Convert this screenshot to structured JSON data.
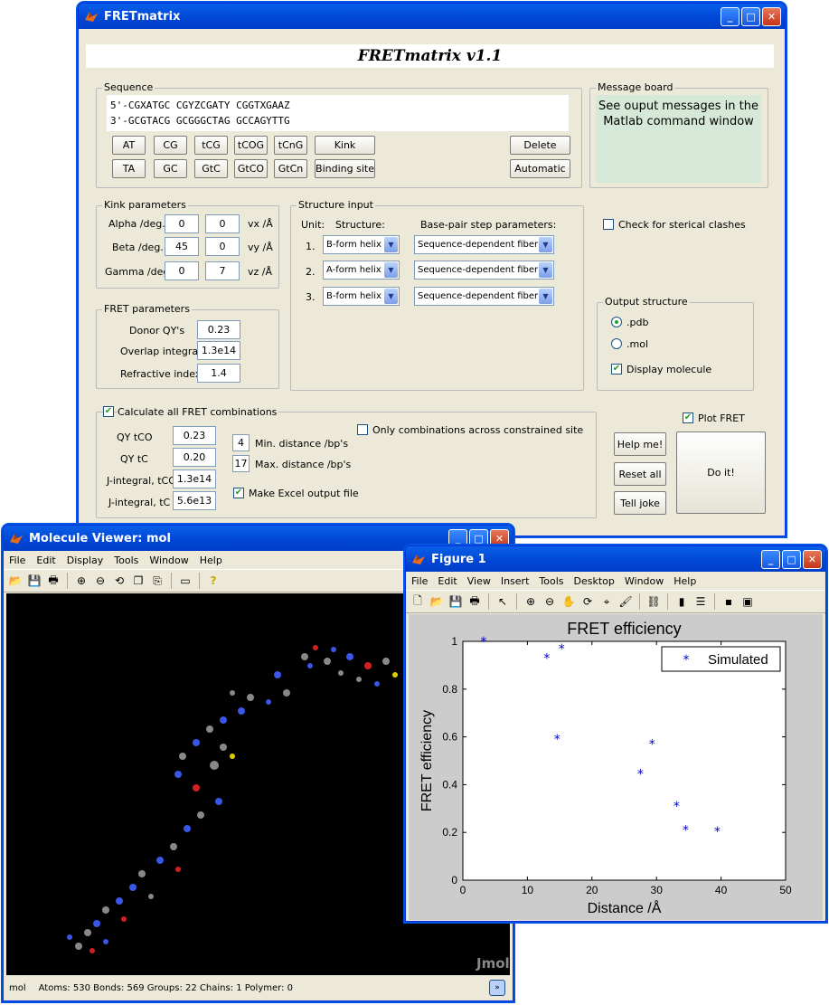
{
  "main_window": {
    "title": "FRETmatrix",
    "banner": "FRETmatrix v1.1",
    "sequence": {
      "label": "Sequence",
      "line1": "5'-CGXATGC CGYZCGATY CGGTXGAAZ",
      "line2": "3'-GCGTACG GCGGGCTAG GCCAGYTTG",
      "buttons_row1": [
        "AT",
        "CG",
        "tCG",
        "tCOG",
        "tCnG",
        "Kink"
      ],
      "buttons_row2": [
        "TA",
        "GC",
        "GtC",
        "GtCO",
        "GtCn",
        "Binding site"
      ],
      "delete_label": "Delete",
      "automatic_label": "Automatic"
    },
    "message_board": {
      "label": "Message board",
      "text": "See ouput messages in the Matlab command window"
    },
    "kink": {
      "label": "Kink parameters",
      "rows": [
        {
          "name": "Alpha /deg.",
          "angle": "0",
          "vec": "0",
          "unit": "vx /Å"
        },
        {
          "name": "Beta /deg.",
          "angle": "45",
          "vec": "0",
          "unit": "vy /Å"
        },
        {
          "name": "Gamma /deg.",
          "angle": "0",
          "vec": "7",
          "unit": "vz /Å"
        }
      ]
    },
    "structure_input": {
      "label": "Structure input",
      "unit_header": "Unit:",
      "structure_header": "Structure:",
      "bp_header": "Base-pair step parameters:",
      "rows": [
        {
          "unit": "1.",
          "structure": "B-form helix",
          "bp": "Sequence-dependent fiber"
        },
        {
          "unit": "2.",
          "structure": "A-form helix",
          "bp": "Sequence-dependent fiber"
        },
        {
          "unit": "3.",
          "structure": "B-form helix",
          "bp": "Sequence-dependent fiber"
        }
      ]
    },
    "sterical_label": "Check for sterical clashes",
    "fret_params": {
      "label": "FRET parameters",
      "rows": [
        {
          "name": "Donor QY's",
          "value": "0.23"
        },
        {
          "name": "Overlap integral",
          "value": "1.3e14"
        },
        {
          "name": "Refractive index",
          "value": "1.4"
        }
      ]
    },
    "output_structure": {
      "label": "Output structure",
      "pdb": ".pdb",
      "mol": ".mol",
      "display": "Display molecule"
    },
    "calc": {
      "label": "Calculate all FRET combinations",
      "rows": [
        {
          "name": "QY tCO",
          "value": "0.23"
        },
        {
          "name": "QY tC",
          "value": "0.20"
        },
        {
          "name": "J-integral, tCO",
          "value": "1.3e14"
        },
        {
          "name": "J-integral, tC",
          "value": "5.6e13"
        }
      ],
      "min_val": "4",
      "min_label": "Min. distance /bp's",
      "max_val": "17",
      "max_label": "Max. distance /bp's",
      "excel_label": "Make Excel output file",
      "only_label": "Only combinations across constrained site"
    },
    "plot_fret": "Plot FRET",
    "help_label": "Help me!",
    "reset_label": "Reset all",
    "joke_label": "Tell joke",
    "doit_label": "Do it!"
  },
  "molecule_viewer": {
    "title": "Molecule Viewer: mol",
    "menu": [
      "File",
      "Edit",
      "Display",
      "Tools",
      "Window",
      "Help"
    ],
    "watermark": "Jmol",
    "status_name": "mol",
    "status": "Atoms: 530  Bonds: 569  Groups: 22  Chains: 1  Polymer: 0"
  },
  "figure": {
    "title": "Figure 1",
    "menu": [
      "File",
      "Edit",
      "View",
      "Insert",
      "Tools",
      "Desktop",
      "Window",
      "Help"
    ]
  },
  "chart_data": {
    "type": "scatter",
    "title": "FRET efficiency",
    "xlabel": "Distance /Å",
    "ylabel": "FRET efficiency",
    "xlim": [
      0,
      50
    ],
    "ylim": [
      0,
      1
    ],
    "xticks": [
      "0",
      "10",
      "20",
      "30",
      "40",
      "50"
    ],
    "yticks": [
      "0",
      "0.2",
      "0.4",
      "0.6",
      "0.8",
      "1"
    ],
    "series": [
      {
        "name": "Simulated",
        "color": "#0000cc",
        "marker": "*",
        "points": [
          [
            3.2,
            1.0
          ],
          [
            13.0,
            0.93
          ],
          [
            15.3,
            0.97
          ],
          [
            14.6,
            0.59
          ],
          [
            29.3,
            0.57
          ],
          [
            27.5,
            0.445
          ],
          [
            33.1,
            0.31
          ],
          [
            34.5,
            0.21
          ],
          [
            39.4,
            0.205
          ]
        ]
      }
    ]
  }
}
